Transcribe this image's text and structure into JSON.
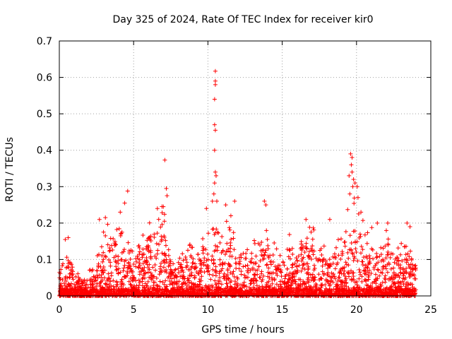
{
  "chart_data": {
    "type": "scatter",
    "title": "Day 325 of 2024, Rate Of TEC Index for receiver kir0",
    "xlabel": "GPS time / hours",
    "ylabel": "ROTI / TECUs",
    "xlim": [
      0,
      25
    ],
    "ylim": [
      0,
      0.7
    ],
    "xticks": [
      0,
      5,
      10,
      15,
      20,
      25
    ],
    "xtick_labels": [
      "0",
      "5",
      "10",
      "15",
      "20",
      "25"
    ],
    "yticks": [
      0,
      0.1,
      0.2,
      0.3,
      0.4,
      0.5,
      0.6,
      0.7
    ],
    "ytick_labels": [
      "0",
      "0.1",
      "0.2",
      "0.3",
      "0.4",
      "0.5",
      "0.6",
      "0.7"
    ],
    "grid": true,
    "marker": "+",
    "color": "#ff0000",
    "envelope": {
      "description": "approximate upper envelope of the dense point cloud (hour, ROTI)",
      "x": [
        0,
        0.5,
        1,
        1.5,
        2,
        2.5,
        3,
        3.5,
        4,
        4.5,
        5,
        5.5,
        6,
        6.5,
        7,
        7.5,
        8,
        8.5,
        9,
        9.5,
        10,
        10.5,
        11,
        11.5,
        12,
        12.5,
        13,
        13.5,
        14,
        14.5,
        15,
        15.5,
        16,
        16.5,
        17,
        17.5,
        18,
        18.5,
        19,
        19.5,
        20,
        20.5,
        21,
        21.5,
        22,
        22.5,
        23,
        23.5,
        24
      ],
      "y": [
        0.12,
        0.15,
        0.08,
        0.06,
        0.07,
        0.12,
        0.2,
        0.19,
        0.22,
        0.2,
        0.15,
        0.18,
        0.2,
        0.22,
        0.25,
        0.13,
        0.12,
        0.16,
        0.15,
        0.17,
        0.2,
        0.22,
        0.21,
        0.23,
        0.2,
        0.17,
        0.15,
        0.17,
        0.2,
        0.15,
        0.14,
        0.17,
        0.15,
        0.19,
        0.2,
        0.16,
        0.13,
        0.15,
        0.18,
        0.25,
        0.28,
        0.22,
        0.2,
        0.18,
        0.19,
        0.14,
        0.16,
        0.15,
        0.12
      ]
    },
    "outliers": [
      {
        "x": 0.4,
        "y": 0.155
      },
      {
        "x": 0.6,
        "y": 0.16
      },
      {
        "x": 2.7,
        "y": 0.21
      },
      {
        "x": 3.1,
        "y": 0.215
      },
      {
        "x": 4.1,
        "y": 0.23
      },
      {
        "x": 4.4,
        "y": 0.255
      },
      {
        "x": 4.6,
        "y": 0.288
      },
      {
        "x": 6.6,
        "y": 0.24
      },
      {
        "x": 7.0,
        "y": 0.245
      },
      {
        "x": 7.1,
        "y": 0.373
      },
      {
        "x": 7.2,
        "y": 0.295
      },
      {
        "x": 7.25,
        "y": 0.275
      },
      {
        "x": 9.9,
        "y": 0.24
      },
      {
        "x": 10.3,
        "y": 0.26
      },
      {
        "x": 10.4,
        "y": 0.28
      },
      {
        "x": 10.45,
        "y": 0.31
      },
      {
        "x": 10.5,
        "y": 0.617
      },
      {
        "x": 10.5,
        "y": 0.59
      },
      {
        "x": 10.5,
        "y": 0.58
      },
      {
        "x": 10.45,
        "y": 0.54
      },
      {
        "x": 10.45,
        "y": 0.47
      },
      {
        "x": 10.5,
        "y": 0.455
      },
      {
        "x": 10.45,
        "y": 0.4
      },
      {
        "x": 10.5,
        "y": 0.34
      },
      {
        "x": 10.55,
        "y": 0.33
      },
      {
        "x": 10.6,
        "y": 0.26
      },
      {
        "x": 11.2,
        "y": 0.25
      },
      {
        "x": 11.8,
        "y": 0.26
      },
      {
        "x": 13.8,
        "y": 0.26
      },
      {
        "x": 13.9,
        "y": 0.25
      },
      {
        "x": 16.6,
        "y": 0.21
      },
      {
        "x": 18.2,
        "y": 0.21
      },
      {
        "x": 19.6,
        "y": 0.39
      },
      {
        "x": 19.7,
        "y": 0.38
      },
      {
        "x": 19.65,
        "y": 0.36
      },
      {
        "x": 19.7,
        "y": 0.34
      },
      {
        "x": 19.5,
        "y": 0.33
      },
      {
        "x": 19.8,
        "y": 0.32
      },
      {
        "x": 19.75,
        "y": 0.3
      },
      {
        "x": 19.55,
        "y": 0.28
      },
      {
        "x": 19.9,
        "y": 0.31
      },
      {
        "x": 20.05,
        "y": 0.3
      },
      {
        "x": 20.1,
        "y": 0.27
      },
      {
        "x": 20.3,
        "y": 0.23
      },
      {
        "x": 21.4,
        "y": 0.2
      },
      {
        "x": 22.1,
        "y": 0.2
      },
      {
        "x": 23.4,
        "y": 0.2
      },
      {
        "x": 23.6,
        "y": 0.19
      }
    ]
  }
}
